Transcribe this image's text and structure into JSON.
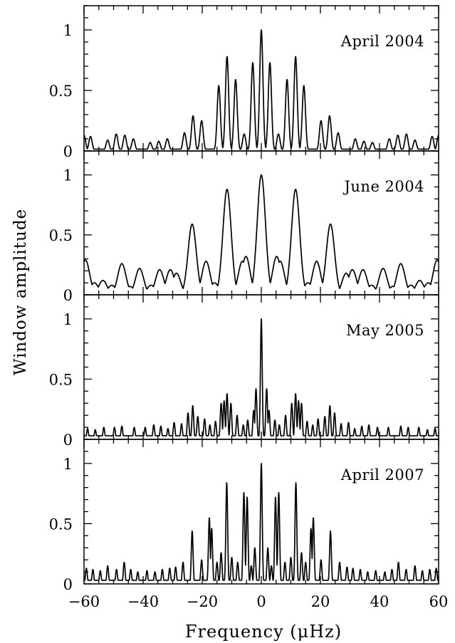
{
  "figure": {
    "ylabel": "Window amplitude",
    "xlabel": "Frequency (μHz)"
  },
  "chart_data": {
    "type": "line",
    "layout": "stacked-panels-shared-x",
    "xlabel": "Frequency (μHz)",
    "ylabel": "Window amplitude",
    "xlim": [
      -60,
      60
    ],
    "xticks": [
      -60,
      -40,
      -20,
      0,
      20,
      40,
      60
    ],
    "xtick_labels": [
      "−60",
      "−40",
      "−20",
      "0",
      "20",
      "40",
      "60"
    ],
    "ylim": [
      0,
      1.2
    ],
    "yticks": [
      0,
      0.5,
      1
    ],
    "ytick_labels": [
      "0",
      "0.5",
      "1"
    ],
    "grid": false,
    "panels": [
      {
        "label": "April 2004",
        "series": [
          {
            "peaks": [
              [
                -11.6,
                0.78
              ],
              [
                -8.7,
                0.59
              ],
              [
                -14.4,
                0.54
              ],
              [
                -2.9,
                0.73
              ],
              [
                0,
                1.0
              ],
              [
                2.9,
                0.73
              ],
              [
                8.7,
                0.59
              ],
              [
                11.6,
                0.78
              ],
              [
                14.4,
                0.54
              ],
              [
                -23.1,
                0.29
              ],
              [
                -20.2,
                0.25
              ],
              [
                -26,
                0.15
              ],
              [
                -5.8,
                0.14
              ],
              [
                5.8,
                0.14
              ],
              [
                20.2,
                0.25
              ],
              [
                23.1,
                0.29
              ],
              [
                26,
                0.15
              ],
              [
                -31.8,
                0.1
              ],
              [
                -34.7,
                0.08
              ],
              [
                -46.2,
                0.13
              ],
              [
                -49.1,
                0.14
              ],
              [
                -57.8,
                0.12
              ],
              [
                -60,
                0.13
              ],
              [
                31.8,
                0.1
              ],
              [
                34.7,
                0.08
              ],
              [
                46.2,
                0.13
              ],
              [
                49.1,
                0.14
              ],
              [
                57.8,
                0.12
              ],
              [
                60,
                0.13
              ],
              [
                -43.3,
                0.1
              ],
              [
                43.3,
                0.1
              ],
              [
                -37.6,
                0.07
              ],
              [
                37.6,
                0.07
              ],
              [
                -52,
                0.09
              ],
              [
                52,
                0.09
              ]
            ],
            "width": 0.55,
            "floor": 0.015
          }
        ]
      },
      {
        "label": "June 2004",
        "series": [
          {
            "peaks": [
              [
                0,
                1.0
              ],
              [
                -11.6,
                0.88
              ],
              [
                11.6,
                0.88
              ],
              [
                -23.4,
                0.59
              ],
              [
                23.4,
                0.59
              ],
              [
                -5.2,
                0.32
              ],
              [
                5.2,
                0.32
              ],
              [
                -6.4,
                0.28
              ],
              [
                6.4,
                0.28
              ],
              [
                -18.7,
                0.28
              ],
              [
                18.7,
                0.28
              ],
              [
                -28.7,
                0.18
              ],
              [
                28.7,
                0.18
              ],
              [
                -30.8,
                0.21
              ],
              [
                30.8,
                0.21
              ],
              [
                -34.4,
                0.21
              ],
              [
                34.4,
                0.21
              ],
              [
                -47.2,
                0.26
              ],
              [
                47.2,
                0.26
              ],
              [
                -41.2,
                0.22
              ],
              [
                41.2,
                0.22
              ],
              [
                -59.5,
                0.29
              ],
              [
                59.5,
                0.29
              ],
              [
                -53.6,
                0.12
              ],
              [
                53.6,
                0.12
              ],
              [
                -15.8,
                0.1
              ],
              [
                15.8,
                0.1
              ],
              [
                -37.3,
                0.08
              ],
              [
                37.3,
                0.08
              ],
              [
                -44.5,
                0.07
              ],
              [
                44.5,
                0.07
              ],
              [
                -50.6,
                0.08
              ],
              [
                50.6,
                0.08
              ],
              [
                -56.5,
                0.1
              ],
              [
                56.5,
                0.1
              ]
            ],
            "width": 1.4,
            "floor": 0.01
          }
        ]
      },
      {
        "label": "May 2005",
        "series": [
          {
            "peaks": [
              [
                0,
                1.0
              ],
              [
                -1.8,
                0.42
              ],
              [
                1.8,
                0.42
              ],
              [
                -2.6,
                0.24
              ],
              [
                2.6,
                0.24
              ],
              [
                -11.6,
                0.38
              ],
              [
                11.6,
                0.38
              ],
              [
                -12.6,
                0.32
              ],
              [
                12.6,
                0.32
              ],
              [
                -10.3,
                0.3
              ],
              [
                10.3,
                0.3
              ],
              [
                -13.6,
                0.3
              ],
              [
                13.6,
                0.3
              ],
              [
                -23.2,
                0.28
              ],
              [
                23.2,
                0.28
              ],
              [
                -21.5,
                0.19
              ],
              [
                21.5,
                0.19
              ],
              [
                -24.8,
                0.22
              ],
              [
                24.8,
                0.22
              ],
              [
                -8.2,
                0.2
              ],
              [
                8.2,
                0.2
              ],
              [
                -15.5,
                0.15
              ],
              [
                15.5,
                0.15
              ],
              [
                -4.6,
                0.16
              ],
              [
                4.6,
                0.16
              ],
              [
                -19.2,
                0.17
              ],
              [
                19.2,
                0.17
              ],
              [
                -6.1,
                0.12
              ],
              [
                6.1,
                0.12
              ],
              [
                -17.4,
                0.12
              ],
              [
                17.4,
                0.12
              ],
              [
                -27,
                0.13
              ],
              [
                27,
                0.13
              ],
              [
                -29.5,
                0.14
              ],
              [
                29.5,
                0.14
              ],
              [
                -34,
                0.11
              ],
              [
                34,
                0.11
              ],
              [
                -36.4,
                0.12
              ],
              [
                36.4,
                0.12
              ],
              [
                -39.3,
                0.1
              ],
              [
                39.3,
                0.1
              ],
              [
                -43,
                0.1
              ],
              [
                43,
                0.1
              ],
              [
                -47.2,
                0.11
              ],
              [
                47.2,
                0.11
              ],
              [
                -49.7,
                0.1
              ],
              [
                49.7,
                0.1
              ],
              [
                -53.3,
                0.1
              ],
              [
                53.3,
                0.1
              ],
              [
                -56.2,
                0.08
              ],
              [
                56.2,
                0.08
              ],
              [
                -58.8,
                0.09
              ],
              [
                58.8,
                0.09
              ],
              [
                -31.6,
                0.09
              ],
              [
                31.6,
                0.09
              ]
            ],
            "width": 0.3,
            "floor": 0.03
          }
        ]
      },
      {
        "label": "April 2007",
        "series": [
          {
            "peaks": [
              [
                0,
                1.0
              ],
              [
                -11.7,
                0.84
              ],
              [
                11.7,
                0.84
              ],
              [
                -5.9,
                0.76
              ],
              [
                5.9,
                0.76
              ],
              [
                -4.8,
                0.72
              ],
              [
                4.8,
                0.72
              ],
              [
                -17.6,
                0.55
              ],
              [
                17.6,
                0.55
              ],
              [
                -16.8,
                0.46
              ],
              [
                16.8,
                0.46
              ],
              [
                -23.4,
                0.44
              ],
              [
                23.4,
                0.44
              ],
              [
                -2.2,
                0.3
              ],
              [
                2.2,
                0.3
              ],
              [
                -13.6,
                0.26
              ],
              [
                13.6,
                0.26
              ],
              [
                -10,
                0.22
              ],
              [
                10,
                0.22
              ],
              [
                -8,
                0.18
              ],
              [
                8,
                0.18
              ],
              [
                -20.2,
                0.2
              ],
              [
                20.2,
                0.2
              ],
              [
                -15,
                0.18
              ],
              [
                15,
                0.18
              ],
              [
                -26.5,
                0.18
              ],
              [
                26.5,
                0.18
              ],
              [
                -29,
                0.14
              ],
              [
                29,
                0.14
              ],
              [
                -31,
                0.13
              ],
              [
                31,
                0.13
              ],
              [
                -33.5,
                0.12
              ],
              [
                33.5,
                0.12
              ],
              [
                -36,
                0.1
              ],
              [
                36,
                0.1
              ],
              [
                -38.7,
                0.11
              ],
              [
                38.7,
                0.11
              ],
              [
                -41.8,
                0.1
              ],
              [
                41.8,
                0.1
              ],
              [
                -44.2,
                0.12
              ],
              [
                44.2,
                0.12
              ],
              [
                -46.4,
                0.18
              ],
              [
                46.4,
                0.18
              ],
              [
                -49,
                0.12
              ],
              [
                49,
                0.12
              ],
              [
                -52,
                0.15
              ],
              [
                52,
                0.15
              ],
              [
                -54.5,
                0.11
              ],
              [
                54.5,
                0.11
              ],
              [
                -57,
                0.12
              ],
              [
                57,
                0.12
              ],
              [
                -59.2,
                0.13
              ],
              [
                59.2,
                0.13
              ],
              [
                -3.4,
                0.15
              ],
              [
                3.4,
                0.15
              ]
            ],
            "width": 0.3,
            "floor": 0.03
          }
        ]
      }
    ]
  }
}
